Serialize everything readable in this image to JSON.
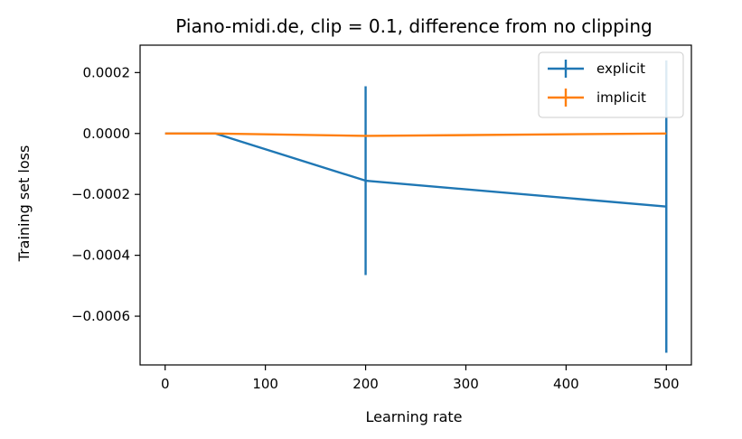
{
  "chart_data": {
    "type": "line",
    "title": "Piano-midi.de, clip = 0.1, difference from no clipping",
    "xlabel": "Learning rate",
    "ylabel": "Training set loss",
    "xlim": [
      -25,
      525
    ],
    "ylim": [
      -0.00076,
      0.00029
    ],
    "xticks": [
      0,
      100,
      200,
      300,
      400,
      500
    ],
    "xtick_labels": [
      "0",
      "100",
      "200",
      "300",
      "400",
      "500"
    ],
    "yticks": [
      0.0002,
      0.0,
      -0.0002,
      -0.0004,
      -0.0006
    ],
    "ytick_labels": [
      "0.0002",
      "0.0000",
      "−0.0002",
      "−0.0004",
      "−0.0006"
    ],
    "legend_position": "top-right",
    "x": [
      0,
      50,
      200,
      500
    ],
    "series": [
      {
        "name": "explicit",
        "color": "#1f77b4",
        "values": [
          0.0,
          0.0,
          -0.000155,
          -0.00024
        ],
        "errors": [
          0.0,
          0.0,
          0.00031,
          0.00048
        ]
      },
      {
        "name": "implicit",
        "color": "#ff7f0e",
        "values": [
          0.0,
          0.0,
          -8e-06,
          0.0
        ],
        "errors": [
          0.0,
          0.0,
          0.0,
          0.0
        ]
      }
    ]
  }
}
